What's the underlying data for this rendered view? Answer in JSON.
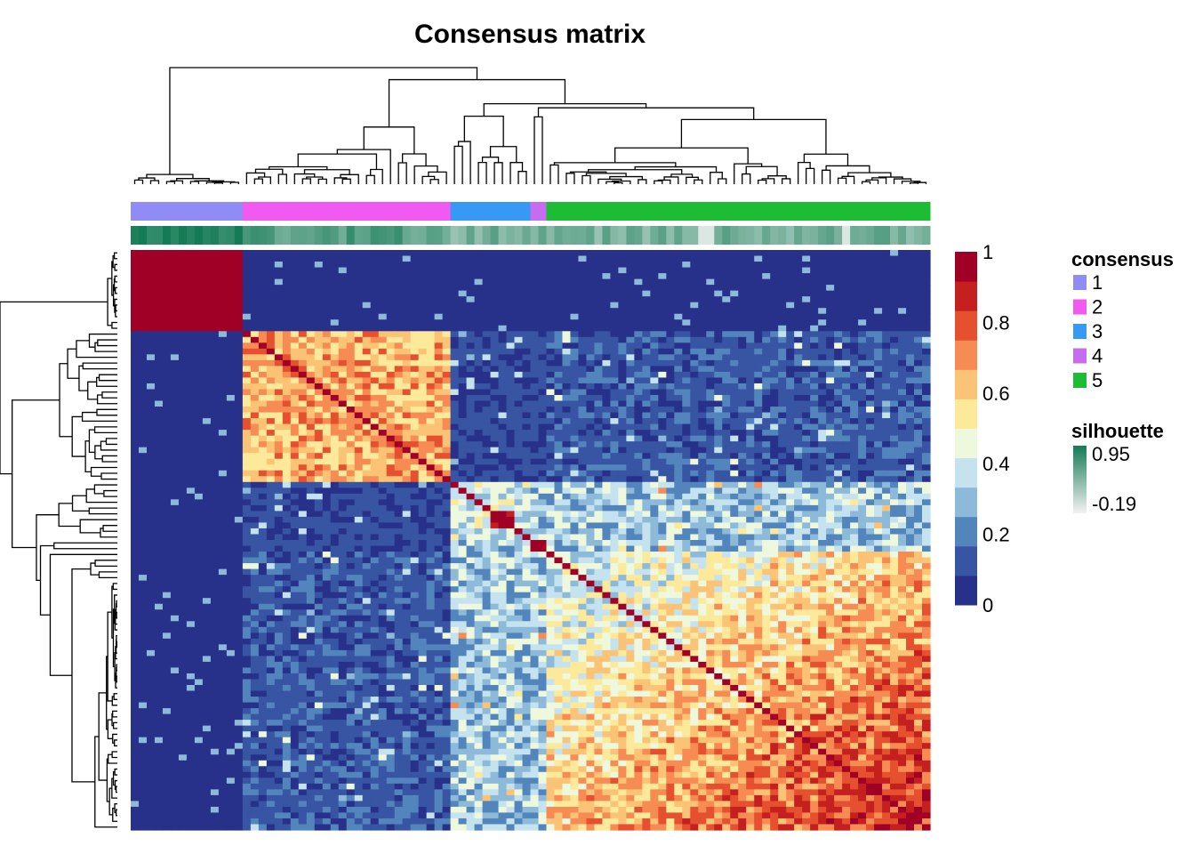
{
  "chart_data": {
    "type": "heatmap",
    "title": "Consensus matrix",
    "value_range": [
      0,
      1
    ],
    "color_scale": {
      "ticks": [
        "0",
        "0.2",
        "0.4",
        "0.6",
        "0.8",
        "1"
      ],
      "bins": [
        "#28318a",
        "#3755a3",
        "#5385bd",
        "#8cbad8",
        "#c4e3ef",
        "#eef8dd",
        "#fde99a",
        "#fbc375",
        "#f68c53",
        "#e5502f",
        "#c4201f",
        "#a10026"
      ]
    },
    "row_dendrogram_side": "left",
    "column_dendrogram_side": "top",
    "clusters": [
      {
        "id": "1",
        "size": 14,
        "color": "#8f8cf5"
      },
      {
        "id": "2",
        "size": 26,
        "color": "#f159f0"
      },
      {
        "id": "3",
        "size": 10,
        "color": "#369af5"
      },
      {
        "id": "4",
        "size": 2,
        "color": "#c56cf0"
      },
      {
        "id": "5",
        "size": 48,
        "color": "#1cbd35"
      }
    ],
    "within_cluster_consensus_approx": [
      0.98,
      0.65,
      0.4,
      0.95,
      0.7
    ],
    "silhouette_range": [
      -0.19,
      0.95
    ],
    "legends": [
      {
        "title": "consensus",
        "entries": [
          {
            "label": "1",
            "color": "#8f8cf5"
          },
          {
            "label": "2",
            "color": "#f159f0"
          },
          {
            "label": "3",
            "color": "#369af5"
          },
          {
            "label": "4",
            "color": "#c56cf0"
          },
          {
            "label": "5",
            "color": "#1cbd35"
          }
        ]
      },
      {
        "title": "silhouette",
        "max_label": "0.95",
        "min_label": "-0.19",
        "colors": [
          "#137b55",
          "#f2f2f2"
        ]
      }
    ]
  }
}
